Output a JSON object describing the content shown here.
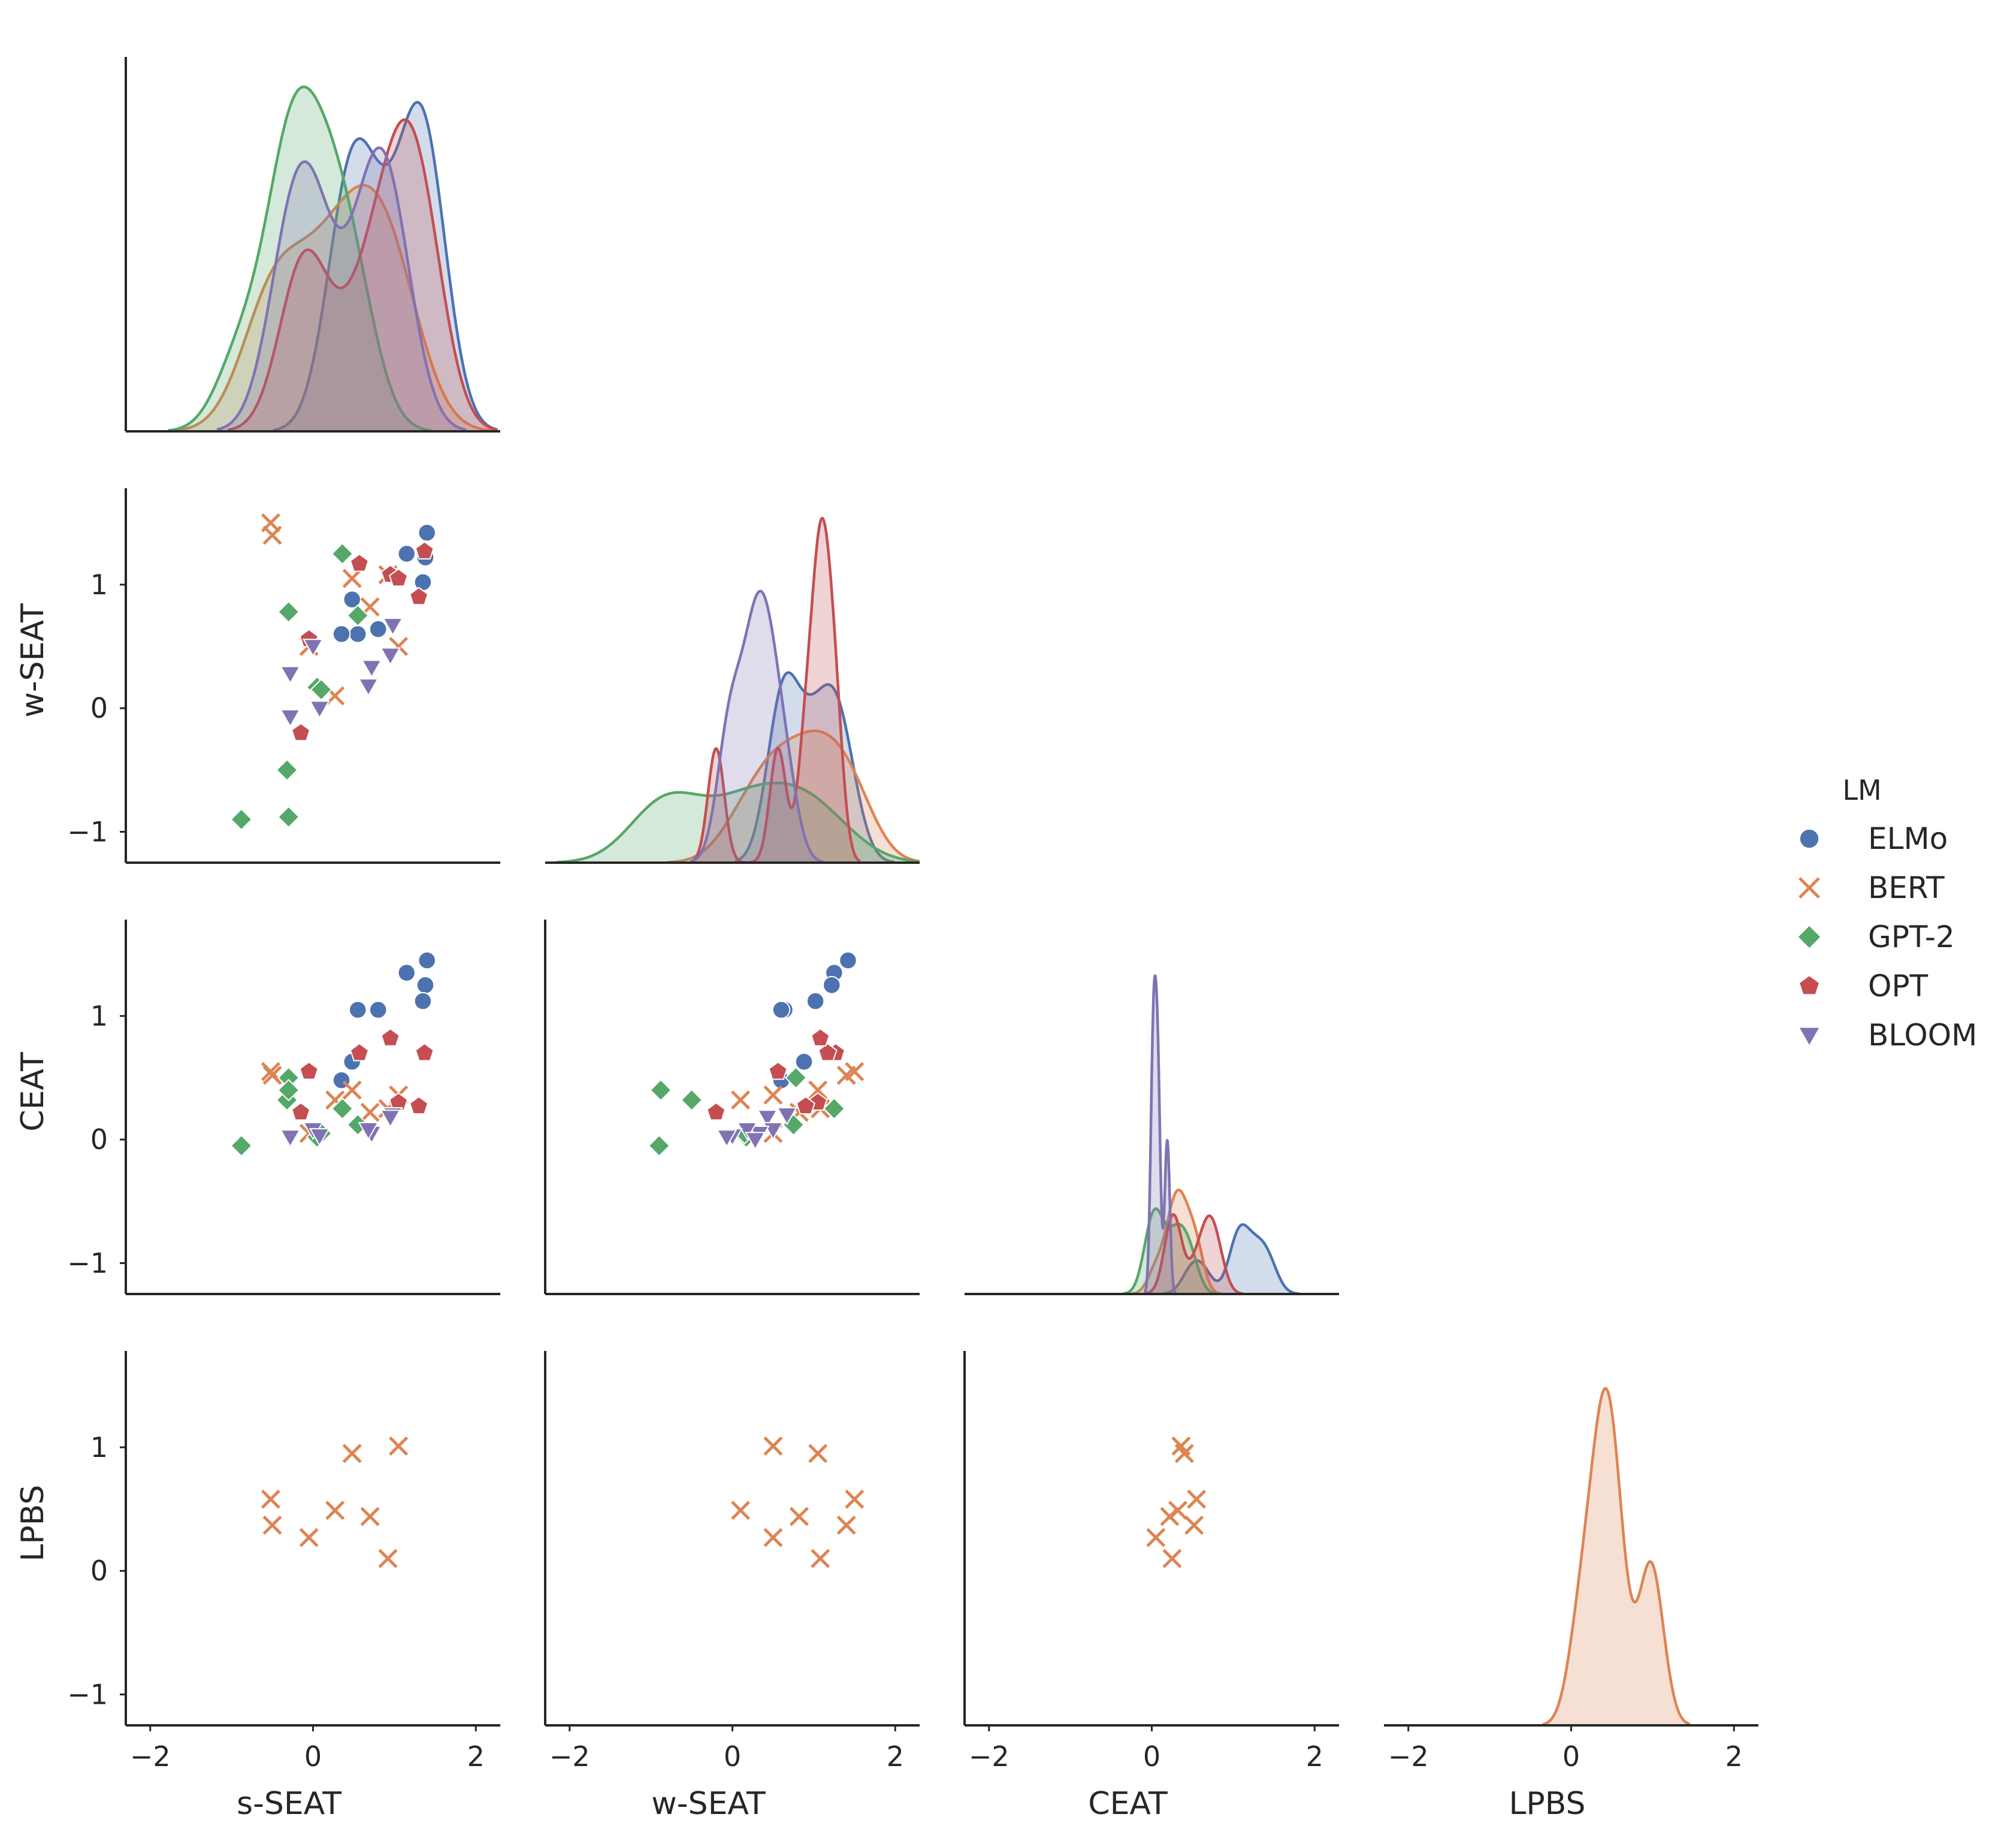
{
  "chart_data": {
    "type": "scatter",
    "variables": [
      "s-SEAT",
      "w-SEAT",
      "CEAT",
      "LPBS"
    ],
    "ticks": [
      -2,
      0,
      2
    ],
    "offdiag_yticks": [
      -1,
      0,
      1
    ],
    "xlim": [
      -2.3,
      2.3
    ],
    "ylim": [
      -1.25,
      1.78
    ],
    "legend": {
      "title": "LM",
      "placement": "right",
      "entries": [
        {
          "name": "ELMo",
          "color": "#4c72b0",
          "marker": "circle"
        },
        {
          "name": "BERT",
          "color": "#dd8452",
          "marker": "x"
        },
        {
          "name": "GPT-2",
          "color": "#55a868",
          "marker": "diamond"
        },
        {
          "name": "OPT",
          "color": "#c44e52",
          "marker": "pentagon"
        },
        {
          "name": "BLOOM",
          "color": "#8172b3",
          "marker": "triangle-down"
        }
      ]
    },
    "series": [
      {
        "name": "ELMo",
        "points": [
          {
            "s": 1.4,
            "w": 1.42,
            "c": 1.45
          },
          {
            "s": 1.15,
            "w": 1.25,
            "c": 1.35
          },
          {
            "s": 1.38,
            "w": 1.22,
            "c": 1.25
          },
          {
            "s": 1.35,
            "w": 1.02,
            "c": 1.12
          },
          {
            "s": 0.8,
            "w": 0.64,
            "c": 1.05
          },
          {
            "s": 0.55,
            "w": 0.6,
            "c": 1.05
          },
          {
            "s": 0.48,
            "w": 0.88,
            "c": 0.63
          },
          {
            "s": 0.35,
            "w": 0.6,
            "c": 0.48
          }
        ]
      },
      {
        "name": "BERT",
        "points": [
          {
            "s": -0.52,
            "w": 1.5,
            "c": 0.55,
            "l": 0.58
          },
          {
            "s": -0.5,
            "w": 1.4,
            "c": 0.52,
            "l": 0.37
          },
          {
            "s": 0.48,
            "w": 1.05,
            "c": 0.4,
            "l": 0.95
          },
          {
            "s": 1.05,
            "w": 0.5,
            "c": 0.36,
            "l": 1.01
          },
          {
            "s": 0.7,
            "w": 0.82,
            "c": 0.22,
            "l": 0.44
          },
          {
            "s": 0.92,
            "w": 1.08,
            "c": 0.25,
            "l": 0.1
          },
          {
            "s": 0.27,
            "w": 0.1,
            "c": 0.32,
            "l": 0.49
          },
          {
            "s": -0.05,
            "w": 0.5,
            "c": 0.05,
            "l": 0.27
          }
        ]
      },
      {
        "name": "GPT-2",
        "points": [
          {
            "s": 0.36,
            "w": 1.25,
            "c": 0.25
          },
          {
            "s": -0.3,
            "w": 0.78,
            "c": 0.5
          },
          {
            "s": 0.55,
            "w": 0.75,
            "c": 0.12
          },
          {
            "s": 0.05,
            "w": 0.17,
            "c": 0.02
          },
          {
            "s": 0.1,
            "w": 0.15,
            "c": 0.05
          },
          {
            "s": -0.32,
            "w": -0.5,
            "c": 0.32
          },
          {
            "s": -0.3,
            "w": -0.88,
            "c": 0.4
          },
          {
            "s": -0.88,
            "w": -0.9,
            "c": -0.05
          }
        ]
      },
      {
        "name": "OPT",
        "points": [
          {
            "s": 1.37,
            "w": 1.27,
            "c": 0.7
          },
          {
            "s": 0.57,
            "w": 1.17,
            "c": 0.7
          },
          {
            "s": 0.95,
            "w": 1.08,
            "c": 0.82
          },
          {
            "s": 1.05,
            "w": 1.05,
            "c": 0.3
          },
          {
            "s": 1.3,
            "w": 0.9,
            "c": 0.27
          },
          {
            "s": -0.05,
            "w": 0.56,
            "c": 0.55
          },
          {
            "s": -0.15,
            "w": -0.2,
            "c": 0.22
          }
        ]
      },
      {
        "name": "BLOOM",
        "points": [
          {
            "s": 0.98,
            "w": 0.67,
            "c": 0.2
          },
          {
            "s": 0.95,
            "w": 0.43,
            "c": 0.18
          },
          {
            "s": 0.0,
            "w": 0.5,
            "c": 0.08
          },
          {
            "s": 0.72,
            "w": 0.33,
            "c": 0.05
          },
          {
            "s": 0.68,
            "w": 0.18,
            "c": 0.08
          },
          {
            "s": -0.28,
            "w": 0.28,
            "c": 0.0
          },
          {
            "s": 0.08,
            "w": 0.0,
            "c": 0.03
          },
          {
            "s": -0.28,
            "w": -0.07,
            "c": 0.02
          }
        ]
      }
    ],
    "kde_bandwidth": {
      "s-SEAT": [
        0.28,
        0.38,
        0.3,
        0.3,
        0.3
      ],
      "w-SEAT": [
        0.19,
        0.3,
        0.42,
        0.1,
        0.15
      ],
      "CEAT": [
        0.12,
        0.1,
        0.1,
        0.1,
        0.03
      ],
      "LPBS": [
        0.15
      ]
    },
    "kde_scale": {
      "s-SEAT": 0.92,
      "w-SEAT": 0.92,
      "CEAT": 0.85,
      "LPBS": 0.9
    }
  }
}
